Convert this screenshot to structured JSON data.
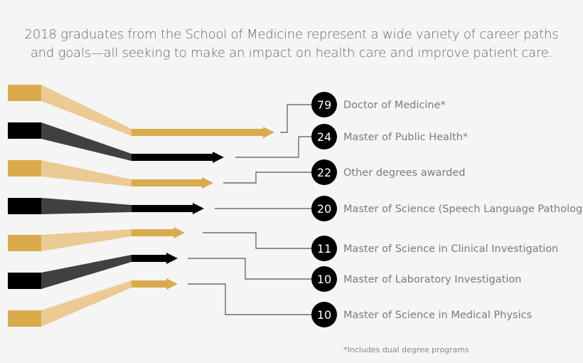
{
  "title_line1": "2018 graduates from the School of Medicine represent a wide variety of career paths",
  "title_line2": "and goals—all seeking to make an impact on health care and improve patient care.",
  "footnote": "*Includes dual degree programs",
  "colors": {
    "gold": "#d9ab4c",
    "gold_light": "#ecca94",
    "black": "#000000",
    "dark_gray": "#404040",
    "background": "#f5f5f5",
    "text": "#7a7a7a"
  },
  "chart_data": {
    "type": "bar",
    "categories": [
      "Doctor of Medicine*",
      "Master of Public Health*",
      "Other degrees awarded",
      "Master of Science (Speech Language Pathology)",
      "Master of Science in Clinical Investigation",
      "Master of Laboratory Investigation",
      "Master of Science in Medical Physics"
    ],
    "values": [
      79,
      24,
      22,
      20,
      11,
      10,
      10
    ],
    "series_colors": [
      "gold",
      "black",
      "gold",
      "black",
      "gold",
      "black",
      "gold"
    ]
  }
}
